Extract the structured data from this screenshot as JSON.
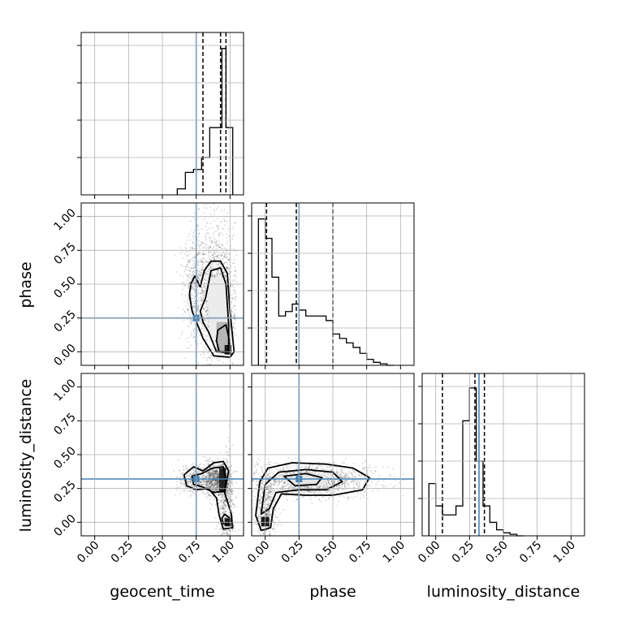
{
  "chart_data": {
    "type": "corner",
    "parameters": [
      "geocent_time",
      "phase",
      "luminosity_distance"
    ],
    "axis_range": [
      -0.1,
      1.1
    ],
    "tick_labels": [
      "0.00",
      "0.25",
      "0.50",
      "0.75",
      "1.00"
    ],
    "grid": true,
    "truths": {
      "geocent_time": 0.75,
      "phase": 0.25,
      "luminosity_distance": 0.32
    },
    "truth_color": "#4682b4",
    "quantiles": {
      "geocent_time": [
        0.8,
        0.93,
        0.97
      ],
      "phase": [
        0.01,
        0.23,
        0.5
      ],
      "luminosity_distance": [
        0.05,
        0.29,
        0.36
      ]
    },
    "histograms": {
      "geocent_time": {
        "edges": [
          0.61,
          0.67,
          0.73,
          0.79,
          0.85,
          0.91,
          0.94,
          0.97,
          1.02
        ],
        "counts": [
          0.04,
          0.15,
          0.17,
          0.25,
          0.45,
          0.45,
          0.98,
          0.45
        ]
      },
      "phase": {
        "edges": [
          -0.05,
          0.0,
          0.05,
          0.1,
          0.15,
          0.2,
          0.25,
          0.3,
          0.35,
          0.45,
          0.5,
          0.55,
          0.6,
          0.65,
          0.7,
          0.75,
          0.8,
          0.85,
          0.9,
          0.95
        ],
        "counts": [
          0.98,
          0.85,
          0.59,
          0.33,
          0.36,
          0.41,
          0.37,
          0.33,
          0.33,
          0.3,
          0.21,
          0.18,
          0.15,
          0.12,
          0.08,
          0.04,
          0.02,
          0.01,
          0.0
        ]
      },
      "luminosity_distance": {
        "edges": [
          -0.05,
          0.0,
          0.05,
          0.1,
          0.15,
          0.2,
          0.25,
          0.3,
          0.35,
          0.4,
          0.45,
          0.5,
          0.55,
          0.6,
          0.65
        ],
        "counts": [
          0.35,
          0.2,
          0.14,
          0.14,
          0.2,
          0.77,
          0.99,
          0.5,
          0.2,
          0.09,
          0.04,
          0.02,
          0.01,
          0.0
        ]
      }
    }
  }
}
